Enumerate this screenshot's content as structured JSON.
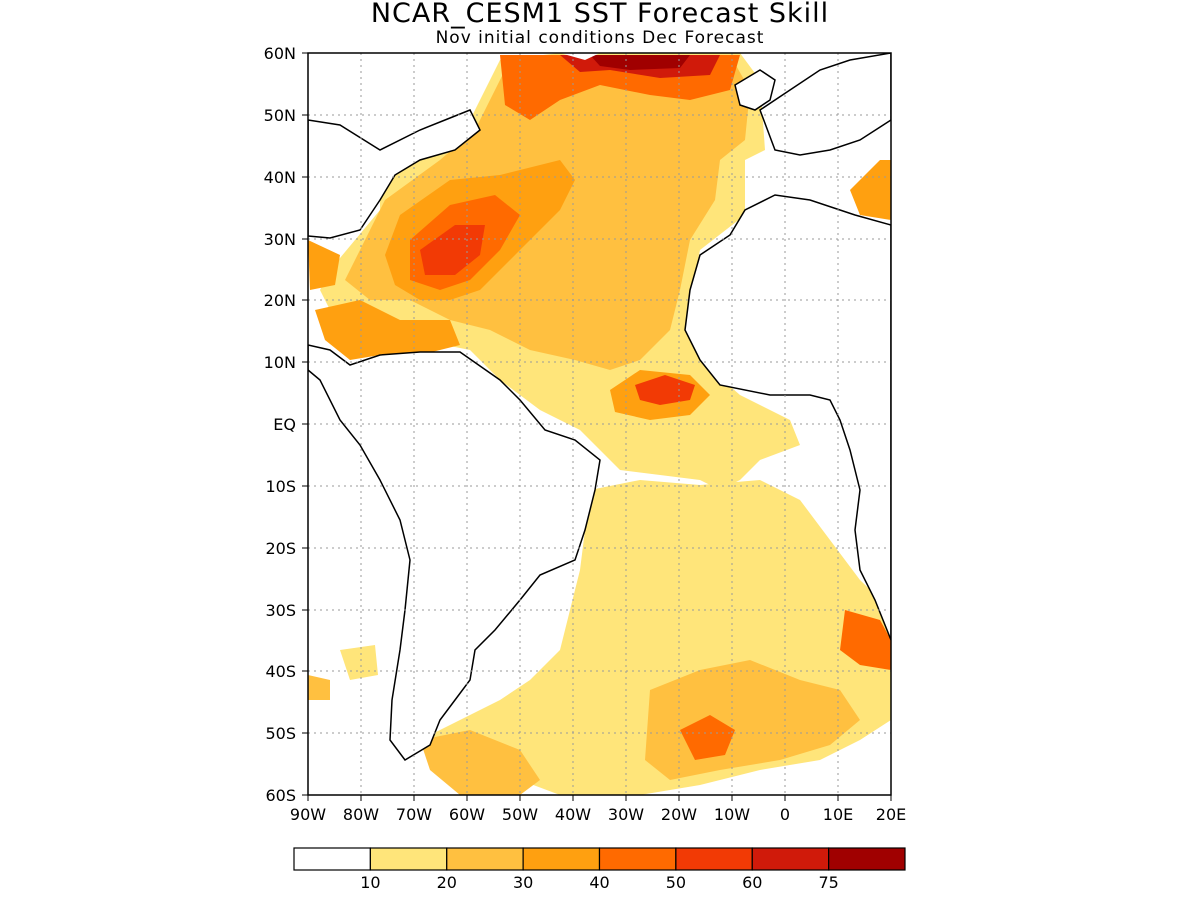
{
  "title": "NCAR_CESM1  SST Forecast Skill",
  "subtitle": "Nov initial conditions   Dec Forecast",
  "lat_labels": [
    "60N",
    "50N",
    "40N",
    "30N",
    "20N",
    "10N",
    "EQ",
    "10S",
    "20S",
    "30S",
    "40S",
    "50S",
    "60S"
  ],
  "lon_labels": [
    "90W",
    "80W",
    "70W",
    "60W",
    "50W",
    "40W",
    "30W",
    "20W",
    "10W",
    "0",
    "10E",
    "20E"
  ],
  "map_extent": {
    "lon": [
      -90,
      20
    ],
    "lat": [
      -60,
      60
    ]
  },
  "colorbar": {
    "labels": [
      "10",
      "20",
      "30",
      "40",
      "50",
      "60",
      "75"
    ],
    "colors": [
      "#ffffff",
      "#ffe57a",
      "#ffc040",
      "#ffa010",
      "#ff6a00",
      "#f23a05",
      "#d01a0a",
      "#a00000"
    ]
  },
  "colors": {
    "coastline": "#000000",
    "grid": "#9a9a9a"
  }
}
